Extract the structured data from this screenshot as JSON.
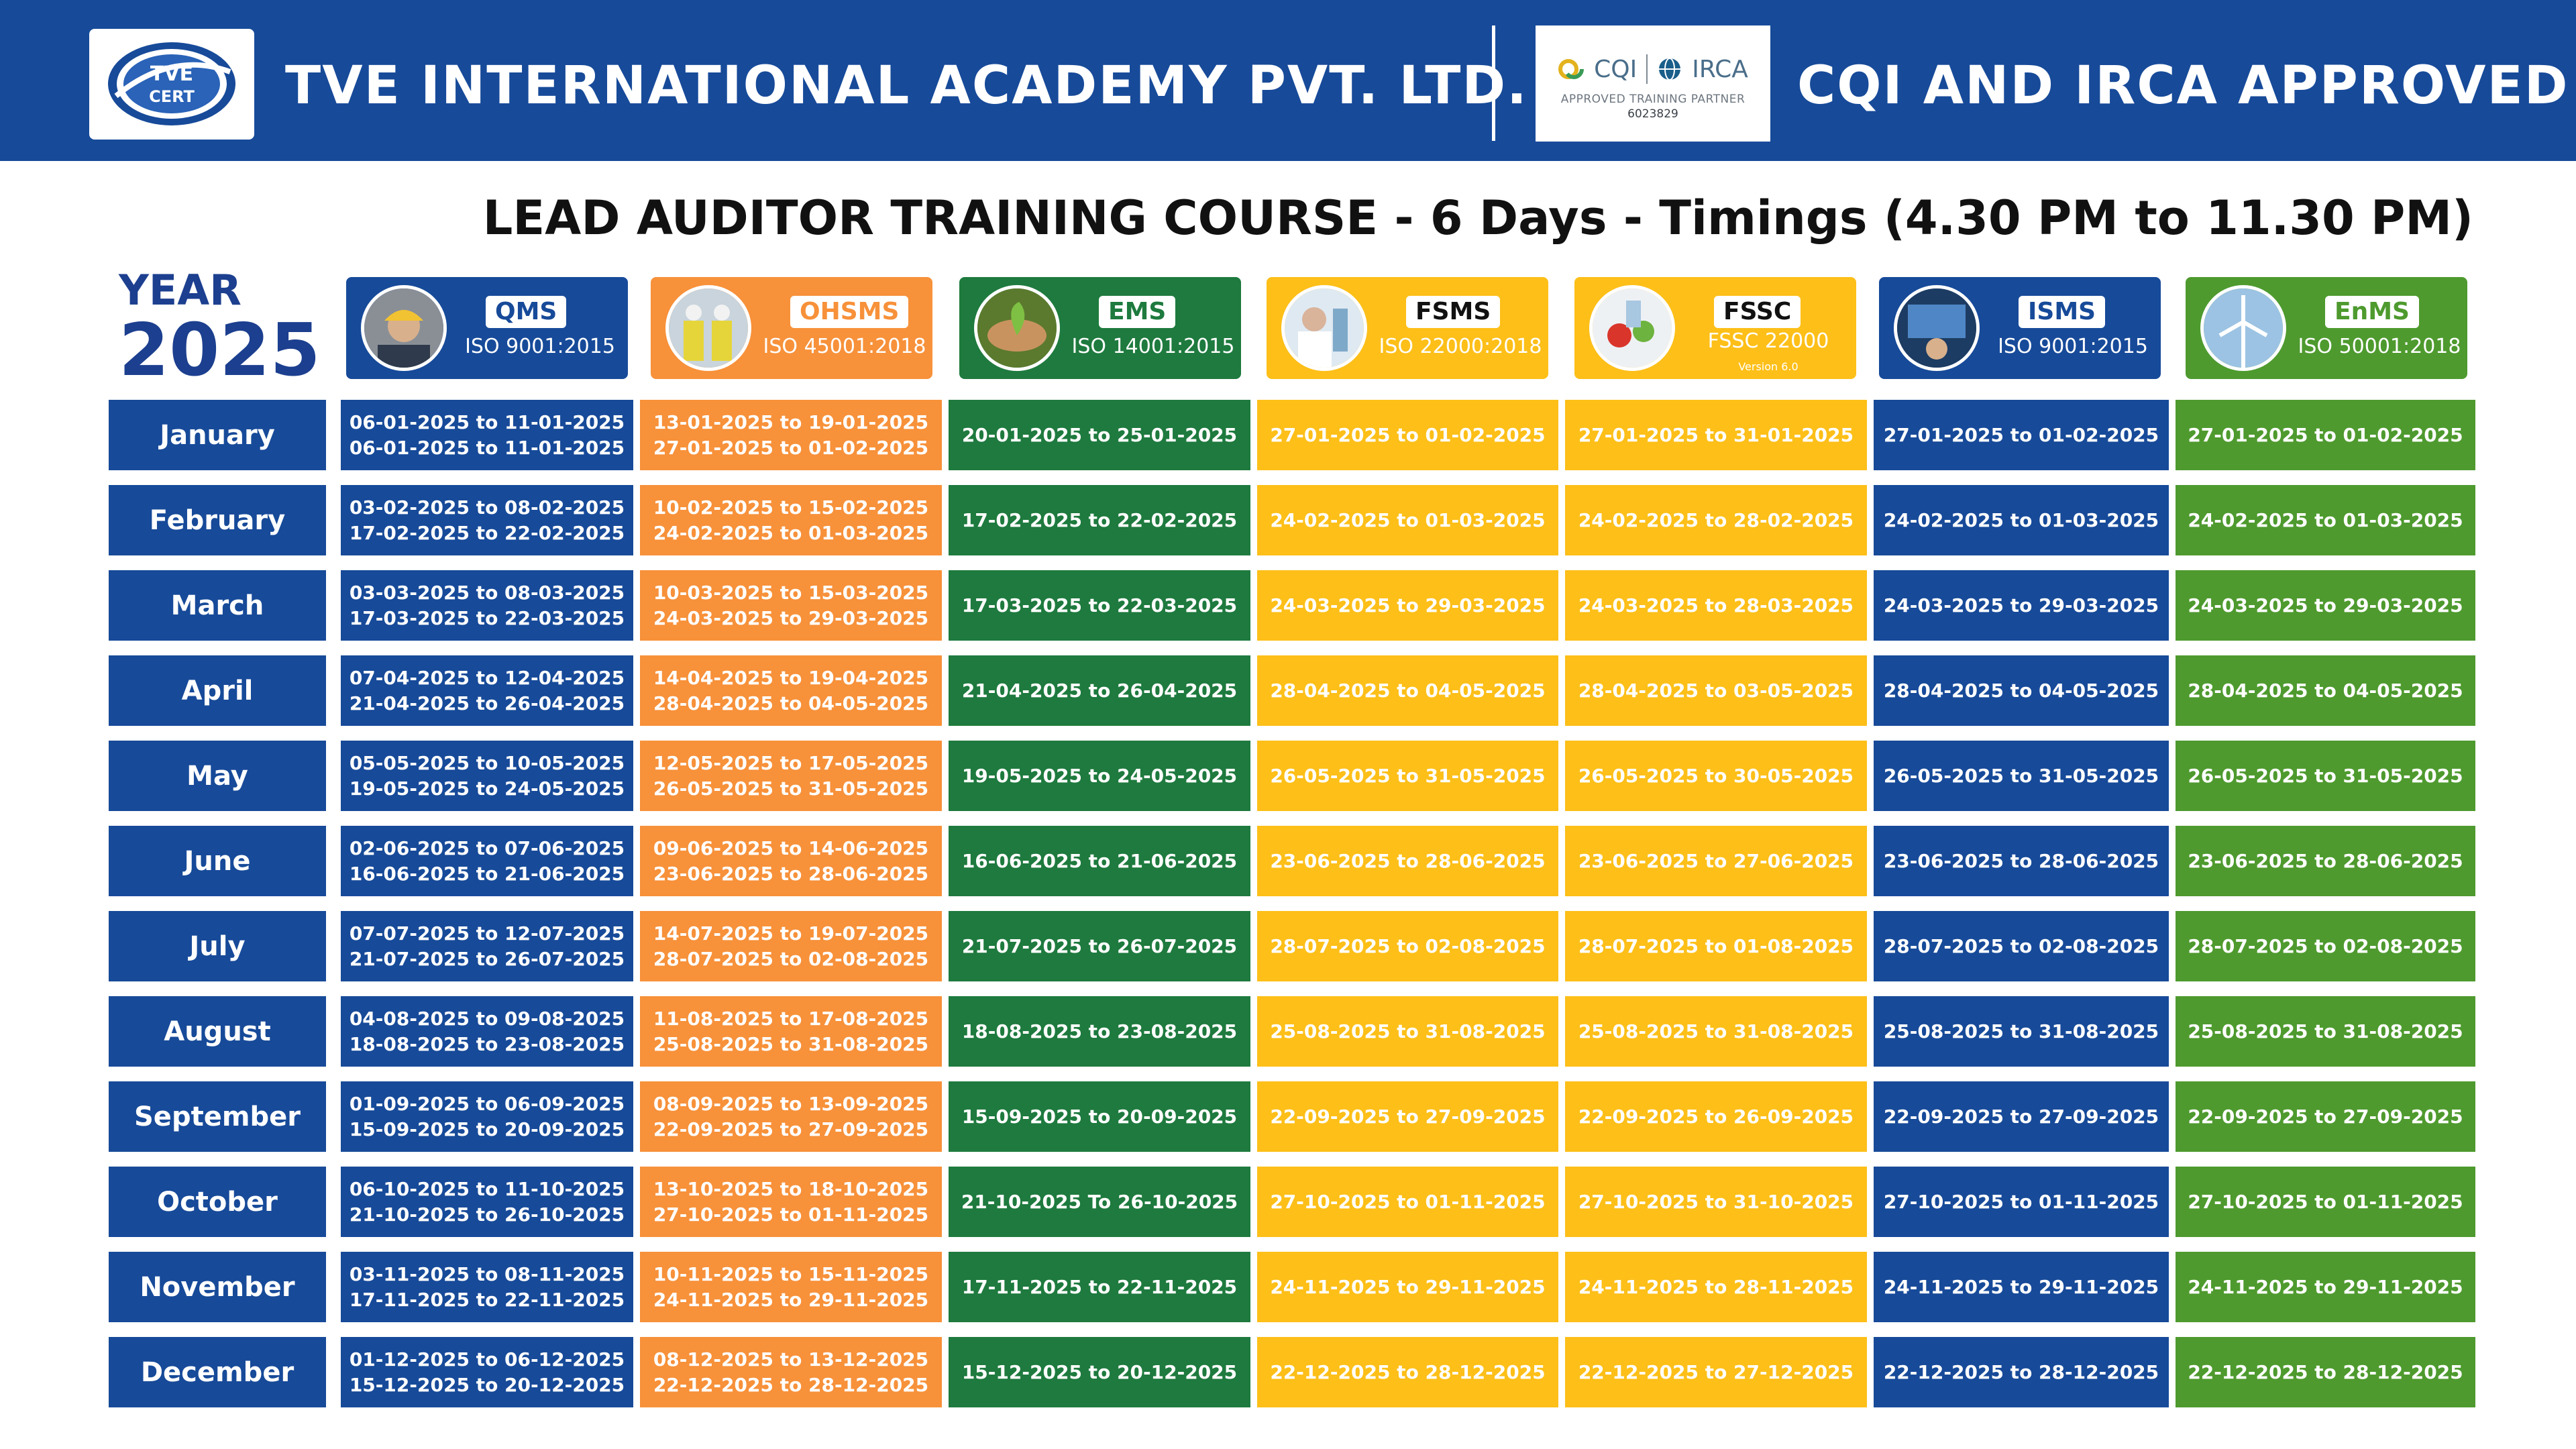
{
  "header": {
    "company_name": "TVE INTERNATIONAL ACADEMY PVT. LTD.",
    "logo_text_top": "TVE",
    "logo_text_bottom": "CERT",
    "cqi_logo_cqi": "CQI",
    "cqi_logo_irca": "IRCA",
    "cqi_partner_text": "APPROVED TRAINING PARTNER",
    "cqi_partner_number": "6023829",
    "approval_text": "CQI AND IRCA APPROVED",
    "colors": {
      "bar": "#174a99",
      "text": "#ffffff"
    }
  },
  "course_title": "LEAD AUDITOR TRAINING COURSE - 6 Days - Timings (4.30 PM to 11.30 PM)",
  "year": {
    "label": "YEAR",
    "value": "2025"
  },
  "courses": [
    {
      "name": "QMS",
      "standard": "ISO 9001:2015",
      "version": "",
      "color": "#174a99",
      "name_color": "#174a99",
      "photo_icon": "worker-helmet-icon"
    },
    {
      "name": "OHSMS",
      "standard": "ISO 45001:2018",
      "version": "",
      "color": "#f7913a",
      "name_color": "#f7913a",
      "photo_icon": "safety-workers-icon"
    },
    {
      "name": "EMS",
      "standard": "ISO 14001:2015",
      "version": "",
      "color": "#1e7a3e",
      "name_color": "#1e7a3e",
      "photo_icon": "environment-hands-icon"
    },
    {
      "name": "FSMS",
      "standard": "ISO 22000:2018",
      "version": "",
      "color": "#fdbf18",
      "name_color": "#111111",
      "photo_icon": "lab-scientist-icon"
    },
    {
      "name": "FSSC",
      "standard": "FSSC 22000",
      "version": "Version 6.0",
      "color": "#fdbf18",
      "name_color": "#111111",
      "photo_icon": "food-safety-icon"
    },
    {
      "name": "ISMS",
      "standard": "ISO 9001:2015",
      "version": "",
      "color": "#174a99",
      "name_color": "#174a99",
      "photo_icon": "security-analyst-icon"
    },
    {
      "name": "EnMS",
      "standard": "ISO 50001:2018",
      "version": "",
      "color": "#4e9a2e",
      "name_color": "#4e9a2e",
      "photo_icon": "wind-turbine-icon"
    }
  ],
  "schedule": [
    {
      "month": "January",
      "dates": [
        [
          "06-01-2025 to 11-01-2025",
          "06-01-2025 to 11-01-2025"
        ],
        [
          "13-01-2025 to 19-01-2025",
          "27-01-2025 to 01-02-2025"
        ],
        [
          "20-01-2025 to 25-01-2025"
        ],
        [
          "27-01-2025 to 01-02-2025"
        ],
        [
          "27-01-2025 to 31-01-2025"
        ],
        [
          "27-01-2025 to 01-02-2025"
        ],
        [
          "27-01-2025 to 01-02-2025"
        ]
      ]
    },
    {
      "month": "February",
      "dates": [
        [
          "03-02-2025 to 08-02-2025",
          "17-02-2025 to 22-02-2025"
        ],
        [
          "10-02-2025 to 15-02-2025",
          "24-02-2025 to 01-03-2025"
        ],
        [
          "17-02-2025 to 22-02-2025"
        ],
        [
          "24-02-2025 to 01-03-2025"
        ],
        [
          "24-02-2025 to 28-02-2025"
        ],
        [
          "24-02-2025 to 01-03-2025"
        ],
        [
          "24-02-2025 to 01-03-2025"
        ]
      ]
    },
    {
      "month": "March",
      "dates": [
        [
          "03-03-2025 to 08-03-2025",
          "17-03-2025 to 22-03-2025"
        ],
        [
          "10-03-2025 to 15-03-2025",
          "24-03-2025 to 29-03-2025"
        ],
        [
          "17-03-2025 to 22-03-2025"
        ],
        [
          "24-03-2025 to 29-03-2025"
        ],
        [
          "24-03-2025 to 28-03-2025"
        ],
        [
          "24-03-2025 to 29-03-2025"
        ],
        [
          "24-03-2025 to 29-03-2025"
        ]
      ]
    },
    {
      "month": "April",
      "dates": [
        [
          "07-04-2025 to 12-04-2025",
          "21-04-2025 to 26-04-2025"
        ],
        [
          "14-04-2025 to 19-04-2025",
          "28-04-2025 to 04-05-2025"
        ],
        [
          "21-04-2025 to 26-04-2025"
        ],
        [
          "28-04-2025 to 04-05-2025"
        ],
        [
          "28-04-2025 to 03-05-2025"
        ],
        [
          "28-04-2025 to 04-05-2025"
        ],
        [
          "28-04-2025 to 04-05-2025"
        ]
      ]
    },
    {
      "month": "May",
      "dates": [
        [
          "05-05-2025 to 10-05-2025",
          "19-05-2025 to 24-05-2025"
        ],
        [
          "12-05-2025 to 17-05-2025",
          "26-05-2025 to 31-05-2025"
        ],
        [
          "19-05-2025 to 24-05-2025"
        ],
        [
          "26-05-2025 to 31-05-2025"
        ],
        [
          "26-05-2025 to 30-05-2025"
        ],
        [
          "26-05-2025 to 31-05-2025"
        ],
        [
          "26-05-2025 to 31-05-2025"
        ]
      ]
    },
    {
      "month": "June",
      "dates": [
        [
          "02-06-2025 to 07-06-2025",
          "16-06-2025 to 21-06-2025"
        ],
        [
          "09-06-2025 to 14-06-2025",
          "23-06-2025 to 28-06-2025"
        ],
        [
          "16-06-2025 to 21-06-2025"
        ],
        [
          "23-06-2025 to 28-06-2025"
        ],
        [
          "23-06-2025 to 27-06-2025"
        ],
        [
          "23-06-2025 to 28-06-2025"
        ],
        [
          "23-06-2025 to 28-06-2025"
        ]
      ]
    },
    {
      "month": "July",
      "dates": [
        [
          "07-07-2025 to 12-07-2025",
          "21-07-2025 to 26-07-2025"
        ],
        [
          "14-07-2025 to 19-07-2025",
          "28-07-2025 to 02-08-2025"
        ],
        [
          "21-07-2025 to 26-07-2025"
        ],
        [
          "28-07-2025 to 02-08-2025"
        ],
        [
          "28-07-2025 to 01-08-2025"
        ],
        [
          "28-07-2025 to 02-08-2025"
        ],
        [
          "28-07-2025 to 02-08-2025"
        ]
      ]
    },
    {
      "month": "August",
      "dates": [
        [
          "04-08-2025 to 09-08-2025",
          "18-08-2025 to 23-08-2025"
        ],
        [
          "11-08-2025 to 17-08-2025",
          "25-08-2025 to 31-08-2025"
        ],
        [
          "18-08-2025 to 23-08-2025"
        ],
        [
          "25-08-2025 to 31-08-2025"
        ],
        [
          "25-08-2025 to 31-08-2025"
        ],
        [
          "25-08-2025 to 31-08-2025"
        ],
        [
          "25-08-2025 to 31-08-2025"
        ]
      ]
    },
    {
      "month": "September",
      "dates": [
        [
          "01-09-2025 to 06-09-2025",
          "15-09-2025 to 20-09-2025"
        ],
        [
          "08-09-2025 to 13-09-2025",
          "22-09-2025 to 27-09-2025"
        ],
        [
          "15-09-2025 to 20-09-2025"
        ],
        [
          "22-09-2025 to 27-09-2025"
        ],
        [
          "22-09-2025 to 26-09-2025"
        ],
        [
          "22-09-2025 to 27-09-2025"
        ],
        [
          "22-09-2025 to 27-09-2025"
        ]
      ]
    },
    {
      "month": "October",
      "dates": [
        [
          "06-10-2025 to 11-10-2025",
          "21-10-2025 to 26-10-2025"
        ],
        [
          "13-10-2025 to 18-10-2025",
          "27-10-2025 to 01-11-2025"
        ],
        [
          "21-10-2025 To 26-10-2025"
        ],
        [
          "27-10-2025 to 01-11-2025"
        ],
        [
          "27-10-2025 to 31-10-2025"
        ],
        [
          "27-10-2025 to 01-11-2025"
        ],
        [
          "27-10-2025 to 01-11-2025"
        ]
      ]
    },
    {
      "month": "November",
      "dates": [
        [
          "03-11-2025 to 08-11-2025",
          "17-11-2025 to 22-11-2025"
        ],
        [
          "10-11-2025 to 15-11-2025",
          "24-11-2025 to 29-11-2025"
        ],
        [
          "17-11-2025 to 22-11-2025"
        ],
        [
          "24-11-2025 to 29-11-2025"
        ],
        [
          "24-11-2025 to 28-11-2025"
        ],
        [
          "24-11-2025 to 29-11-2025"
        ],
        [
          "24-11-2025 to 29-11-2025"
        ]
      ]
    },
    {
      "month": "December",
      "dates": [
        [
          "01-12-2025 to 06-12-2025",
          "15-12-2025 to 20-12-2025"
        ],
        [
          "08-12-2025 to 13-12-2025",
          "22-12-2025 to 28-12-2025"
        ],
        [
          "15-12-2025 to 20-12-2025"
        ],
        [
          "22-12-2025 to 28-12-2025"
        ],
        [
          "22-12-2025 to 27-12-2025"
        ],
        [
          "22-12-2025 to 28-12-2025"
        ],
        [
          "22-12-2025 to 28-12-2025"
        ]
      ]
    }
  ]
}
